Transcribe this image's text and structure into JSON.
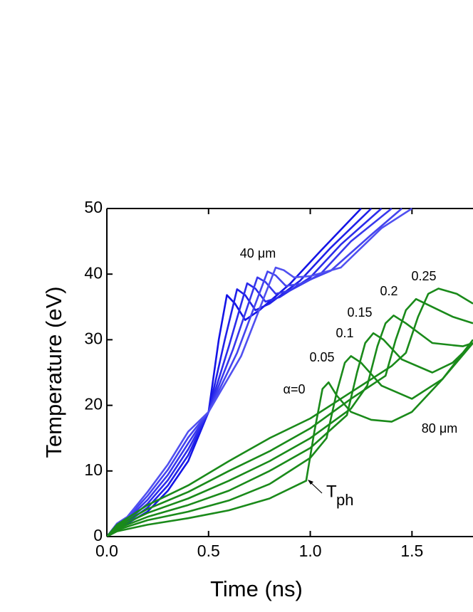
{
  "chart_data": {
    "type": "line",
    "xlabel": "Time (ns)",
    "ylabel": "Temperature (eV)",
    "xlim": [
      0,
      1.8
    ],
    "ylim": [
      0,
      50
    ],
    "xticks": [
      {
        "value": 0,
        "label": "0.0"
      },
      0.5,
      {
        "value": 1,
        "label": "1.0"
      },
      1.5
    ],
    "yticks": [
      0,
      10,
      20,
      30,
      40,
      50
    ],
    "series": [
      {
        "color": "#1414e6",
        "x": [
          0,
          0.05,
          0.1,
          0.2,
          0.3,
          0.4,
          0.5,
          0.55,
          0.59,
          0.63,
          0.68,
          0.75,
          0.9,
          1.05,
          1.25
        ],
        "values": [
          0,
          1,
          2,
          3.8,
          7,
          11.5,
          19,
          30,
          36.8,
          35.5,
          33,
          34.5,
          38.5,
          43.5,
          50
        ]
      },
      {
        "color": "#2020e8",
        "x": [
          0,
          0.05,
          0.1,
          0.2,
          0.3,
          0.4,
          0.5,
          0.58,
          0.64,
          0.68,
          0.73,
          0.8,
          0.95,
          1.1,
          1.3
        ],
        "values": [
          0,
          1.2,
          2.2,
          4.4,
          7.8,
          12.4,
          19,
          30,
          37.7,
          36.8,
          34.5,
          35.5,
          39,
          44,
          50
        ]
      },
      {
        "color": "#2c2ceb",
        "x": [
          0,
          0.05,
          0.1,
          0.2,
          0.3,
          0.4,
          0.5,
          0.6,
          0.69,
          0.73,
          0.78,
          0.85,
          1.0,
          1.15,
          1.35
        ],
        "values": [
          0,
          1.4,
          2.4,
          5,
          8.6,
          13.3,
          19,
          29,
          38.6,
          37.8,
          35.8,
          36.5,
          39.5,
          44.5,
          50
        ]
      },
      {
        "color": "#3838ed",
        "x": [
          0,
          0.05,
          0.1,
          0.2,
          0.3,
          0.4,
          0.5,
          0.62,
          0.74,
          0.78,
          0.83,
          0.9,
          1.05,
          1.2,
          1.4
        ],
        "values": [
          0,
          1.6,
          2.6,
          5.6,
          9.4,
          14.2,
          19,
          28.5,
          39.5,
          38.8,
          37,
          37.5,
          40,
          45,
          50
        ]
      },
      {
        "color": "#4444ef",
        "x": [
          0,
          0.05,
          0.1,
          0.2,
          0.3,
          0.4,
          0.5,
          0.64,
          0.79,
          0.83,
          0.88,
          0.95,
          1.1,
          1.3,
          1.45
        ],
        "values": [
          0,
          1.8,
          2.8,
          6.2,
          10.2,
          15.1,
          19,
          28,
          40.4,
          39.8,
          38.2,
          38.5,
          40.5,
          46,
          50
        ]
      },
      {
        "color": "#5050f0",
        "x": [
          0,
          0.05,
          0.1,
          0.2,
          0.3,
          0.4,
          0.5,
          0.66,
          0.83,
          0.87,
          0.92,
          1.0,
          1.15,
          1.35,
          1.5
        ],
        "values": [
          0,
          2,
          3,
          6.8,
          11,
          16,
          19,
          27.5,
          41,
          40.6,
          39.5,
          39.7,
          41,
          47,
          50
        ]
      },
      {
        "name": "α=0",
        "color": "#1a8a1a",
        "x": [
          0,
          0.05,
          0.2,
          0.4,
          0.6,
          0.8,
          0.98,
          1.02,
          1.06,
          1.09,
          1.13,
          1.2,
          1.3,
          1.4,
          1.5,
          1.65,
          1.8
        ],
        "values": [
          0,
          0.8,
          1.8,
          2.8,
          4,
          5.8,
          8.5,
          16,
          22.5,
          23.5,
          21.5,
          19,
          17.8,
          17.5,
          19,
          24,
          30
        ]
      },
      {
        "name": "0.05",
        "color": "#1a8a1a",
        "x": [
          0,
          0.05,
          0.2,
          0.4,
          0.6,
          0.8,
          1.0,
          1.08,
          1.13,
          1.17,
          1.2,
          1.25,
          1.35,
          1.5,
          1.65,
          1.8
        ],
        "values": [
          0,
          1,
          2.5,
          3.8,
          5.5,
          8,
          12,
          15,
          22,
          26.5,
          27.5,
          26.5,
          23,
          21,
          24,
          29.5
        ]
      },
      {
        "name": "0.1",
        "color": "#1a8a1a",
        "x": [
          0,
          0.05,
          0.2,
          0.4,
          0.6,
          0.8,
          1.0,
          1.18,
          1.23,
          1.27,
          1.31,
          1.36,
          1.45,
          1.6,
          1.7,
          1.8
        ],
        "values": [
          0,
          1.2,
          3,
          4.8,
          7,
          10,
          13.5,
          18.5,
          25,
          29.5,
          31,
          30,
          27,
          25,
          26.5,
          29.5
        ]
      },
      {
        "name": "0.15",
        "color": "#1a8a1a",
        "x": [
          0,
          0.05,
          0.2,
          0.4,
          0.6,
          0.8,
          1.0,
          1.2,
          1.28,
          1.33,
          1.37,
          1.41,
          1.47,
          1.6,
          1.75,
          1.8
        ],
        "values": [
          0,
          1.4,
          3.6,
          5.8,
          8.5,
          11.5,
          15,
          19.5,
          23,
          29,
          32.5,
          33.7,
          32.5,
          29.5,
          29,
          29.5
        ]
      },
      {
        "name": "0.2",
        "color": "#1a8a1a",
        "x": [
          0,
          0.05,
          0.2,
          0.4,
          0.6,
          0.8,
          1.0,
          1.2,
          1.37,
          1.42,
          1.47,
          1.52,
          1.6,
          1.7,
          1.8
        ],
        "values": [
          0,
          1.6,
          4.2,
          6.8,
          10,
          13,
          16.5,
          21,
          24.5,
          30,
          34.5,
          36.2,
          35,
          33.5,
          32.5
        ]
      },
      {
        "name": "0.25",
        "color": "#1a8a1a",
        "x": [
          0,
          0.05,
          0.2,
          0.4,
          0.6,
          0.8,
          1.0,
          1.2,
          1.4,
          1.47,
          1.53,
          1.58,
          1.63,
          1.72,
          1.8
        ],
        "values": [
          0,
          1.8,
          4.8,
          7.8,
          11.5,
          15,
          18,
          22,
          26,
          28,
          33.5,
          37,
          37.8,
          37,
          35.5
        ]
      }
    ],
    "annotations": [
      {
        "text": "40 μm"
      },
      {
        "text": "80 μm"
      },
      {
        "text": "T",
        "sub": "ph"
      }
    ]
  }
}
